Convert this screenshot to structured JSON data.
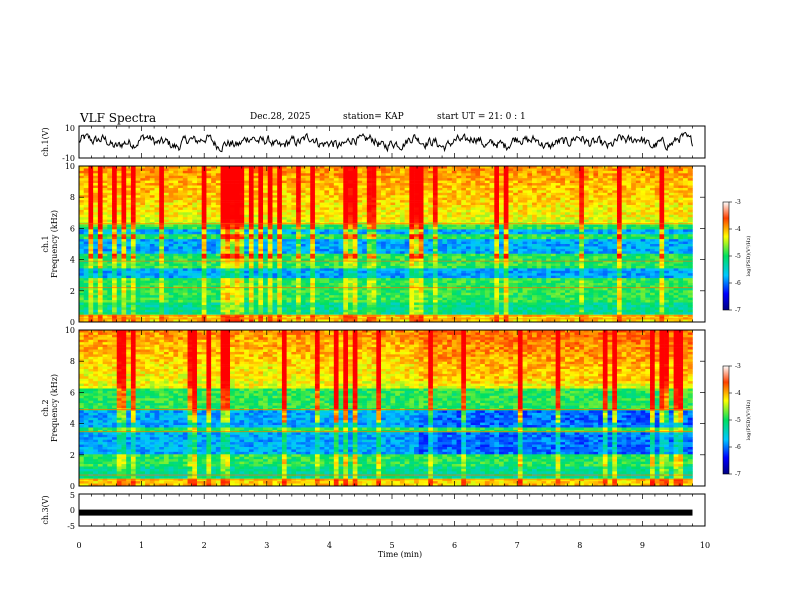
{
  "header": {
    "title": "VLF Spectra",
    "date": "Dec.28, 2025",
    "station": "station= KAP",
    "start": "start  UT  =   21: 0  : 1"
  },
  "chart_data": [
    {
      "id": "ch1-waveform",
      "type": "line",
      "ylabel": "ch.1(V)",
      "ylim": [
        -10,
        10
      ],
      "y_ticks": [
        "10",
        "-10"
      ],
      "xlim": [
        0,
        10
      ],
      "data_extent_min": 9.8,
      "description_values": "noisy waveform roughly between -6 and 6 V"
    },
    {
      "id": "ch1-spectrogram",
      "type": "heatmap",
      "ylabel": "ch.1\nFrequency (kHz)",
      "ylabel_line1": "ch.1",
      "ylabel_line2": "Frequency (kHz)",
      "ylim": [
        0,
        10
      ],
      "y_ticks": [
        "0",
        "2",
        "4",
        "6",
        "8",
        "10"
      ],
      "xlim": [
        0,
        10
      ],
      "data_extent_min": 9.8,
      "colorbar": {
        "label": "log(PSD)(V²/Hz)",
        "range": [
          -7,
          -3
        ],
        "ticks": [
          "-3",
          "-4",
          "-5",
          "-6",
          "-7"
        ]
      },
      "quiet_bands_khz": [
        [
          2.8,
          3.5
        ],
        [
          4.3,
          5.3
        ],
        [
          5.6,
          6.0
        ]
      ]
    },
    {
      "id": "ch2-spectrogram",
      "type": "heatmap",
      "ylabel_line1": "ch.2",
      "ylabel_line2": "Frequency (kHz)",
      "ylim": [
        0,
        10
      ],
      "y_ticks": [
        "0",
        "2",
        "4",
        "6",
        "8",
        "10"
      ],
      "xlim": [
        0,
        10
      ],
      "data_extent_min": 9.8,
      "colorbar": {
        "label": "log(PSD)(V²/Hz)",
        "range": [
          -7,
          -3
        ],
        "ticks": [
          "-3",
          "-4",
          "-5",
          "-6",
          "-7"
        ]
      },
      "quiet_bands_khz": [
        [
          2.0,
          3.4
        ],
        [
          3.8,
          4.8
        ]
      ]
    },
    {
      "id": "ch3-waveform",
      "type": "line",
      "ylabel": "ch.3(V)",
      "ylim": [
        -5,
        5
      ],
      "y_ticks": [
        "5",
        "0",
        "-5"
      ],
      "xlim": [
        0,
        10
      ],
      "constant_value_v": -0.8,
      "data_extent_min": 9.8
    }
  ],
  "x_axis": {
    "label": "Time  (min)",
    "ticks": [
      "0",
      "1",
      "2",
      "3",
      "4",
      "5",
      "6",
      "7",
      "8",
      "9",
      "10"
    ]
  }
}
